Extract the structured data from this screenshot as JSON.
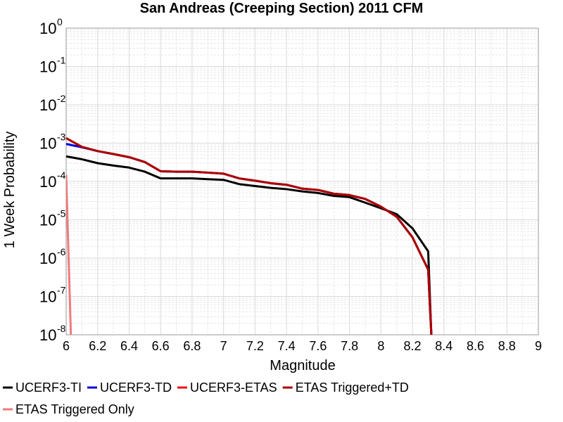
{
  "chart_data": {
    "type": "line",
    "title": "San Andreas (Creeping Section) 2011 CFM",
    "xlabel": "Magnitude",
    "ylabel": "1 Week Probability",
    "xlim": [
      6,
      9
    ],
    "ylim": [
      1e-08,
      1
    ],
    "yscale": "log",
    "x_ticks": [
      "6",
      "6.2",
      "6.4",
      "6.6",
      "6.8",
      "7",
      "7.2",
      "7.4",
      "7.6",
      "7.8",
      "8",
      "8.2",
      "8.4",
      "8.6",
      "8.8",
      "9"
    ],
    "y_ticks": [
      {
        "base": "10",
        "exp": "0"
      },
      {
        "base": "10",
        "exp": "-1"
      },
      {
        "base": "10",
        "exp": "-2"
      },
      {
        "base": "10",
        "exp": "-3"
      },
      {
        "base": "10",
        "exp": "-4"
      },
      {
        "base": "10",
        "exp": "-5"
      },
      {
        "base": "10",
        "exp": "-6"
      },
      {
        "base": "10",
        "exp": "-7"
      },
      {
        "base": "10",
        "exp": "-8"
      }
    ],
    "grid": true,
    "legend_position": "bottom",
    "series": [
      {
        "name": "UCERF3-TI",
        "color": "#000000",
        "x": [
          6.0,
          6.1,
          6.2,
          6.3,
          6.4,
          6.5,
          6.6,
          6.7,
          6.8,
          6.9,
          7.0,
          7.1,
          7.2,
          7.3,
          7.4,
          7.5,
          7.6,
          7.7,
          7.8,
          7.9,
          8.0,
          8.1,
          8.2,
          8.3,
          8.32
        ],
        "y": [
          0.00045,
          0.00038,
          0.0003,
          0.00026,
          0.00023,
          0.00018,
          0.00012,
          0.00012,
          0.00012,
          0.000115,
          0.00011,
          8.5e-05,
          7.6e-05,
          6.8e-05,
          6.3e-05,
          5.5e-05,
          5e-05,
          4.2e-05,
          3.9e-05,
          2.8e-05,
          2e-05,
          1.4e-05,
          6e-06,
          1.5e-06,
          1e-08
        ]
      },
      {
        "name": "UCERF3-TD",
        "color": "#0000dd",
        "x": [
          6.0,
          6.1,
          6.2,
          6.3,
          6.4,
          6.5,
          6.6,
          6.7,
          6.8,
          6.9,
          7.0,
          7.1,
          7.2,
          7.3,
          7.4,
          7.5,
          7.6,
          7.7,
          7.8,
          7.9,
          8.0,
          8.1,
          8.2,
          8.3,
          8.32
        ],
        "y": [
          0.00095,
          0.00078,
          0.00062,
          0.00052,
          0.00043,
          0.00032,
          0.000185,
          0.00018,
          0.00018,
          0.00017,
          0.00016,
          0.00012,
          0.000105,
          9e-05,
          8.2e-05,
          6.5e-05,
          6e-05,
          4.8e-05,
          4.4e-05,
          3.5e-05,
          2.2e-05,
          1.2e-05,
          3.5e-06,
          5e-07,
          1e-08
        ]
      },
      {
        "name": "UCERF3-ETAS",
        "color": "#ee1111",
        "x": [
          6.0,
          6.1,
          6.2,
          6.3,
          6.4,
          6.5,
          6.6,
          6.7,
          6.8,
          6.9,
          7.0,
          7.1,
          7.2,
          7.3,
          7.4,
          7.5,
          7.6,
          7.7,
          7.8,
          7.9,
          8.0,
          8.1,
          8.2,
          8.3,
          8.32
        ],
        "y": [
          0.00135,
          0.0008,
          0.00062,
          0.00052,
          0.00043,
          0.00032,
          0.000185,
          0.00018,
          0.00018,
          0.00017,
          0.00016,
          0.00012,
          0.000105,
          9e-05,
          8.2e-05,
          6.5e-05,
          6e-05,
          4.8e-05,
          4.4e-05,
          3.5e-05,
          2.2e-05,
          1.2e-05,
          3.5e-06,
          5e-07,
          1e-08
        ]
      },
      {
        "name": "ETAS Triggered+TD",
        "color": "#aa0000",
        "x": [
          6.0,
          6.1,
          6.2,
          6.3,
          6.4,
          6.5,
          6.6,
          6.7,
          6.8,
          6.9,
          7.0,
          7.1,
          7.2,
          7.3,
          7.4,
          7.5,
          7.6,
          7.7,
          7.8,
          7.9,
          8.0,
          8.1,
          8.2,
          8.3,
          8.32
        ],
        "y": [
          0.00135,
          0.0008,
          0.00062,
          0.00052,
          0.00043,
          0.00032,
          0.000185,
          0.00018,
          0.00018,
          0.00017,
          0.00016,
          0.00012,
          0.000105,
          9e-05,
          8.2e-05,
          6.5e-05,
          6e-05,
          4.8e-05,
          4.4e-05,
          3.5e-05,
          2.2e-05,
          1.2e-05,
          3.5e-06,
          5e-07,
          1e-08
        ]
      },
      {
        "name": "ETAS Triggered Only",
        "color": "#f07a7a",
        "x": [
          6.0,
          6.03
        ],
        "y": [
          0.00015,
          1e-08
        ]
      }
    ]
  }
}
